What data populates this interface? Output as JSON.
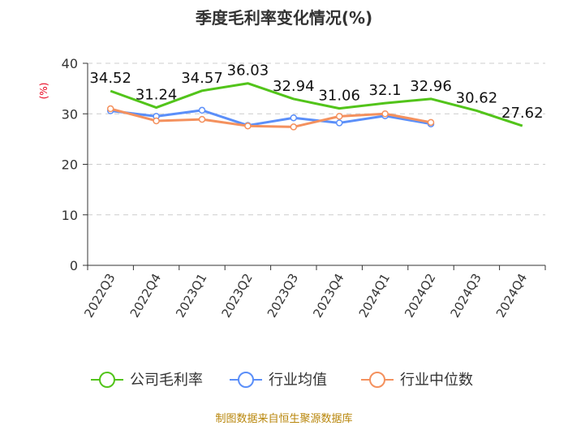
{
  "chart_data": {
    "type": "line",
    "title": "季度毛利率变化情况(%)",
    "ylabel": "(%)",
    "ylim": [
      0,
      40
    ],
    "yticks": [
      0,
      10,
      20,
      30,
      40
    ],
    "grid": true,
    "legend_position": "bottom",
    "categories": [
      "2022Q3",
      "2022Q4",
      "2023Q1",
      "2023Q2",
      "2023Q3",
      "2023Q4",
      "2024Q1",
      "2024Q2",
      "2024Q3",
      "2024Q4"
    ],
    "series": [
      {
        "name": "公司毛利率",
        "color": "#52c41a",
        "values": [
          34.52,
          31.24,
          34.57,
          36.03,
          32.94,
          31.06,
          32.1,
          32.96,
          30.62,
          27.62
        ],
        "labels": [
          "34.52",
          "31.24",
          "34.57",
          "36.03",
          "32.94",
          "31.06",
          "32.1",
          "32.96",
          "30.62",
          "27.62"
        ]
      },
      {
        "name": "行业均值",
        "color": "#5b8ff9",
        "values": [
          30.6,
          29.5,
          30.7,
          27.7,
          29.2,
          28.2,
          29.6,
          28.0,
          null,
          null
        ]
      },
      {
        "name": "行业中位数",
        "color": "#f4915e",
        "values": [
          31.0,
          28.6,
          28.9,
          27.6,
          27.4,
          29.5,
          30.0,
          28.3,
          null,
          null
        ]
      }
    ]
  },
  "footer": {
    "source": "制图数据来自恒生聚源数据库"
  }
}
